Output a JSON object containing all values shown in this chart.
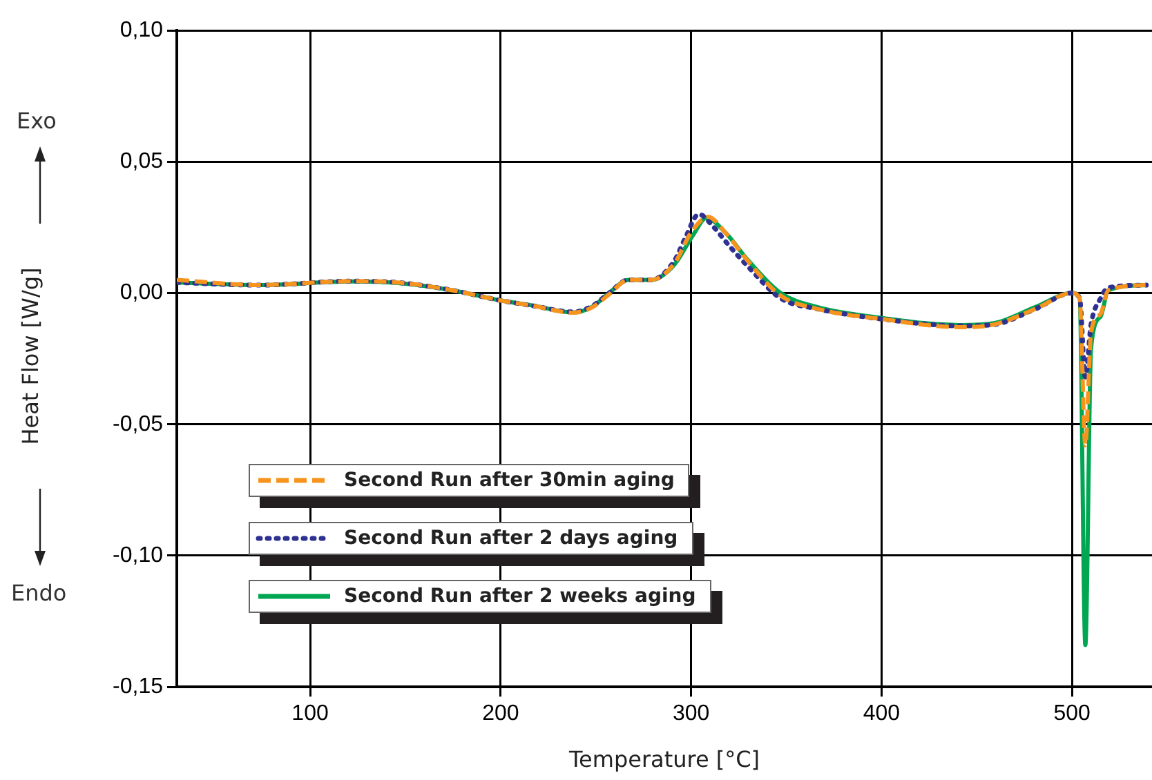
{
  "chart_data": {
    "type": "line",
    "xlabel": "Temperature [°C]",
    "ylabel": "Heat Flow [W/g]",
    "annotations": [
      "Exo",
      "Endo"
    ],
    "xlim": [
      30,
      542
    ],
    "xticks": [
      100,
      200,
      300,
      400,
      500
    ],
    "ylim": [
      -0.15,
      0.1
    ],
    "yticks": [
      {
        "value": -0.15,
        "label": "-0,15"
      },
      {
        "value": -0.1,
        "label": "-0,10"
      },
      {
        "value": -0.05,
        "label": "-0,05"
      },
      {
        "value": 0,
        "label": "0,00"
      },
      {
        "value": 0.05,
        "label": "0,05"
      },
      {
        "value": 0.1,
        "label": "0,10"
      }
    ],
    "grid": true,
    "legend": "bottom left",
    "marker": "none",
    "series": [
      {
        "name": "Second Run after 30min aging",
        "color": "#f7941d",
        "line_style": "dashed",
        "x": [
          30,
          73,
          121,
          146,
          175,
          199,
          218,
          238,
          248,
          257,
          267,
          279,
          291,
          300,
          309,
          318,
          330,
          347,
          366,
          401,
          441,
          459,
          481,
          500,
          504,
          507,
          510,
          515,
          519,
          539
        ],
        "values": [
          0.005,
          0.003,
          0.0045,
          0.004,
          0.001,
          -0.0027,
          -0.005,
          -0.0075,
          -0.0055,
          -0.0005,
          0.005,
          0.005,
          0.011,
          0.023,
          0.029,
          0.023,
          0.012,
          -0.001,
          -0.006,
          -0.01,
          -0.013,
          -0.012,
          -0.006,
          0,
          -0.002,
          -0.058,
          -0.015,
          -0.008,
          0.001,
          0.003
        ]
      },
      {
        "name": "Second Run after 2 days aging",
        "color": "#2e3192",
        "line_style": "dotted",
        "x": [
          30,
          73,
          121,
          146,
          175,
          199,
          218,
          238,
          248,
          257,
          267,
          279,
          291,
          297,
          304,
          312,
          320,
          330,
          347,
          366,
          401,
          441,
          459,
          481,
          500,
          504,
          507,
          510,
          515,
          519,
          539
        ],
        "values": [
          0.004,
          0.003,
          0.0045,
          0.004,
          0.001,
          -0.0027,
          -0.005,
          -0.0072,
          -0.005,
          0,
          0.005,
          0.005,
          0.012,
          0.021,
          0.03,
          0.025,
          0.018,
          0.01,
          -0.002,
          -0.006,
          -0.01,
          -0.0125,
          -0.012,
          -0.006,
          0,
          -0.002,
          -0.032,
          -0.012,
          -0.002,
          0.002,
          0.003
        ]
      },
      {
        "name": "Second Run after 2 weeks aging",
        "color": "#00a651",
        "line_style": "solid",
        "x": [
          30,
          73,
          121,
          146,
          175,
          199,
          218,
          238,
          248,
          257,
          267,
          279,
          291,
          301,
          308,
          318,
          330,
          347,
          366,
          401,
          441,
          459,
          481,
          500,
          504,
          507,
          510,
          515,
          519,
          539
        ],
        "values": [
          0.004,
          0.003,
          0.0044,
          0.0038,
          0.001,
          -0.0027,
          -0.0049,
          -0.0074,
          -0.0053,
          0,
          0.005,
          0.005,
          0.0106,
          0.022,
          0.0286,
          0.023,
          0.0124,
          0,
          -0.0053,
          -0.0096,
          -0.0122,
          -0.0115,
          -0.0053,
          0,
          -0.0018,
          -0.134,
          -0.021,
          -0.009,
          0.001,
          0.003
        ]
      }
    ]
  }
}
